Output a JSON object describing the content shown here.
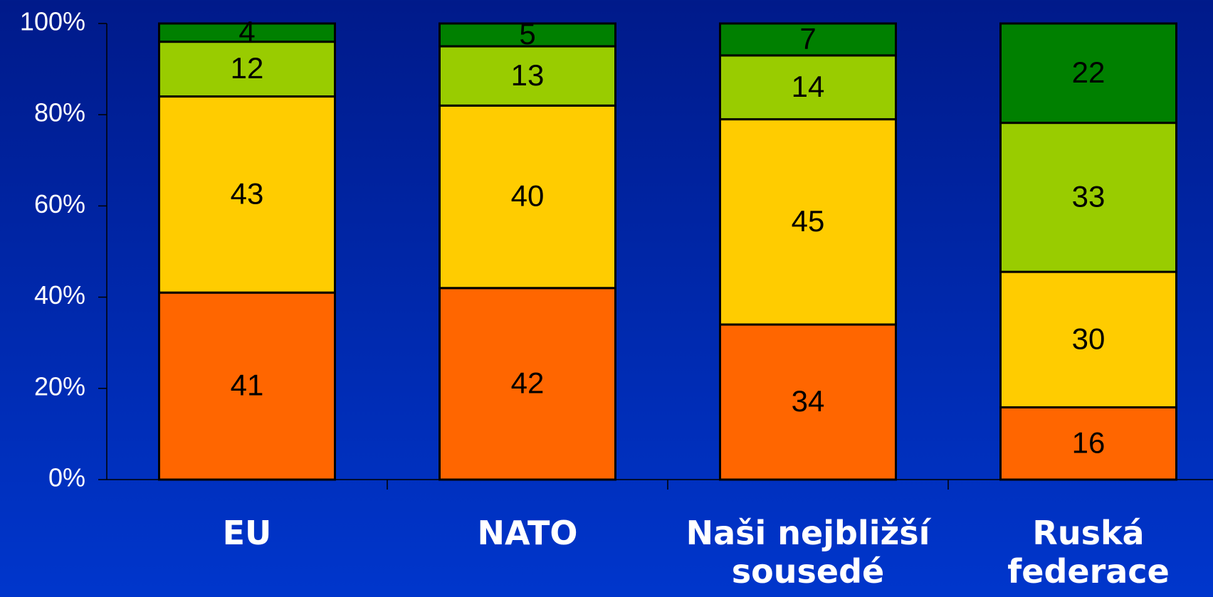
{
  "chart_data": {
    "type": "bar",
    "stack": "percent",
    "categories": [
      "EU",
      "NATO",
      "Naši nejbližší sousedé",
      "Ruská federace"
    ],
    "series": [
      {
        "color": "#ff6600",
        "values": [
          41,
          42,
          34,
          16
        ]
      },
      {
        "color": "#ffcc00",
        "values": [
          43,
          40,
          45,
          30
        ]
      },
      {
        "color": "#99cc00",
        "values": [
          12,
          13,
          14,
          33
        ]
      },
      {
        "color": "#008000",
        "values": [
          4,
          5,
          7,
          22
        ]
      }
    ],
    "ylim": [
      0,
      100
    ],
    "yticks": [
      {
        "value": 0,
        "label": "0%"
      },
      {
        "value": 20,
        "label": "20%"
      },
      {
        "value": 40,
        "label": "40%"
      },
      {
        "value": 60,
        "label": "60%"
      },
      {
        "value": 80,
        "label": "80%"
      },
      {
        "value": 100,
        "label": "100%"
      }
    ]
  }
}
